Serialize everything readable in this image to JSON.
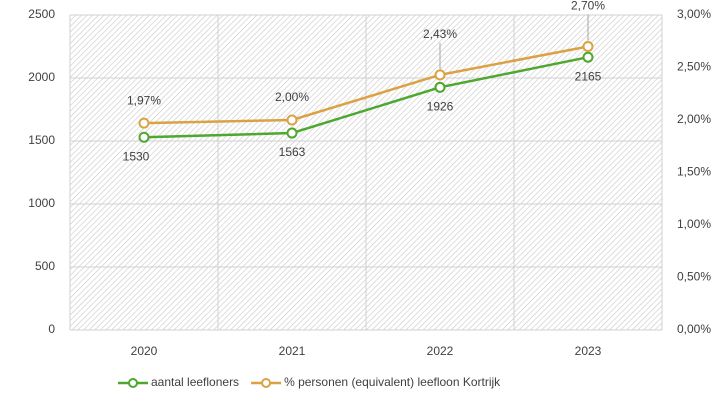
{
  "chart_data": {
    "type": "line",
    "categories": [
      "2020",
      "2021",
      "2022",
      "2023"
    ],
    "series": [
      {
        "name": "aantal leefloners",
        "color": "#4ea72e",
        "values": [
          1530,
          1563,
          1926,
          2165
        ]
      },
      {
        "name": "% personen (equivalent) leefloon Kortrijk",
        "color": "#dba244",
        "axis": "y2",
        "values": [
          1.97,
          2.0,
          2.43,
          2.7
        ],
        "value_labels": [
          "1,97%",
          "2,00%",
          "2,43%",
          "2,70%"
        ]
      }
    ],
    "ylim": [
      0,
      2500
    ],
    "yticks": [
      0,
      500,
      1000,
      1500,
      2000,
      2500
    ],
    "y2lim": [
      0,
      3
    ],
    "y2ticks": [
      {
        "value": 0,
        "label": "0,00%"
      },
      {
        "value": 0.5,
        "label": "0,50%"
      },
      {
        "value": 1,
        "label": "1,00%"
      },
      {
        "value": 1.5,
        "label": "1,50%"
      },
      {
        "value": 2,
        "label": "2,00%"
      },
      {
        "value": 2.5,
        "label": "2,50%"
      },
      {
        "value": 3,
        "label": "3,00%"
      }
    ],
    "grid": true,
    "legend": "bottom"
  }
}
